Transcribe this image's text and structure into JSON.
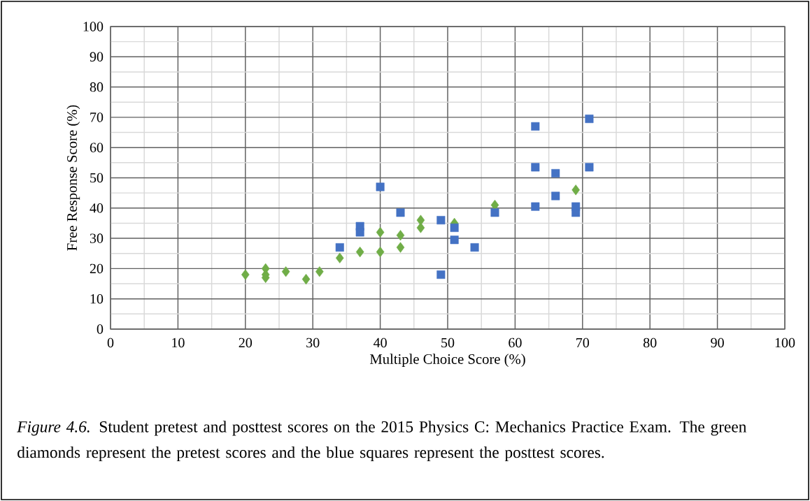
{
  "chart_data": {
    "type": "scatter",
    "xlabel": "Multiple Choice Score (%)",
    "ylabel": "Free Response Score (%)",
    "xlim": [
      0,
      100
    ],
    "ylim": [
      0,
      100
    ],
    "xticks": [
      0,
      10,
      20,
      30,
      40,
      50,
      60,
      70,
      80,
      90,
      100
    ],
    "yticks": [
      0,
      10,
      20,
      30,
      40,
      50,
      60,
      70,
      80,
      90,
      100
    ],
    "grid": true,
    "series": [
      {
        "color": "#70ad47",
        "marker": "diamond",
        "x": [
          20,
          23,
          23,
          23,
          26,
          29,
          31,
          34,
          37,
          40,
          40,
          43,
          43,
          46,
          46,
          51,
          57,
          69
        ],
        "values": [
          18,
          20,
          18,
          17,
          19,
          16.5,
          19,
          23.5,
          25.5,
          25.5,
          32,
          27,
          31,
          33.5,
          36,
          35,
          41,
          46
        ]
      },
      {
        "color": "#4472c4",
        "marker": "square",
        "x": [
          34,
          37,
          37,
          40,
          43,
          49,
          49,
          51,
          51,
          54,
          57,
          63,
          63,
          63,
          66,
          66,
          69,
          69,
          71,
          71
        ],
        "values": [
          27,
          34,
          32,
          47,
          38.5,
          36,
          18,
          33.5,
          29.5,
          27,
          38.5,
          67,
          53.5,
          40.5,
          51.5,
          44,
          40.5,
          38.5,
          69.5,
          53.5
        ]
      }
    ],
    "annotations": [
      "*Figure 4.6.* Student pretest and posttest scores on the 2015 Physics C: Mechanics Practice Exam. The green diamonds represent the pretest scores and the blue squares represent the posttest scores."
    ]
  }
}
